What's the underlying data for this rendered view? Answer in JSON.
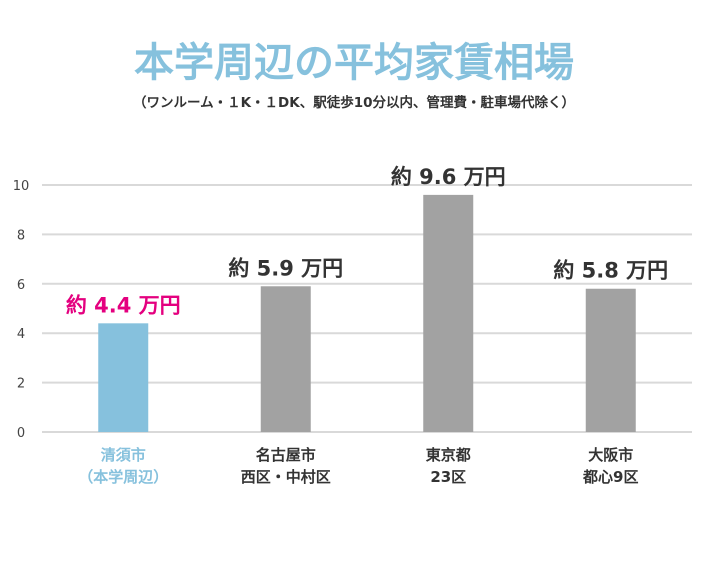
{
  "colors": {
    "title": "#86c1dd",
    "subtitle": "#333333",
    "highlight_bar": "#86c1dd",
    "default_bar": "#a2a2a2",
    "highlight_value_label": "#e4007f",
    "default_value_label": "#333333",
    "highlight_category": "#86c1dd",
    "default_category": "#333333",
    "gridline": "#d9d9d9",
    "axis_text": "#444444"
  },
  "chart_data": {
    "type": "bar",
    "title": "本学周辺の平均家賃相場",
    "subtitle": "（ワンルーム・１K・１DK、駅徒歩10分以内、管理費・駐車場代除く）",
    "xlabel": "",
    "ylabel": "",
    "ylim": [
      0,
      10
    ],
    "yticks": [
      0,
      2,
      4,
      6,
      8,
      10
    ],
    "grid": true,
    "legend": "none",
    "categories": [
      [
        "清須市",
        "（本学周辺）"
      ],
      [
        "名古屋市",
        "西区・中村区"
      ],
      [
        "東京都",
        "23区"
      ],
      [
        "大阪市",
        "都心9区"
      ]
    ],
    "values": [
      4.4,
      5.9,
      9.6,
      5.8
    ],
    "value_labels": [
      "約 4.4 万円",
      "約 5.9 万円",
      "約 9.6 万円",
      "約 5.8 万円"
    ],
    "highlight_index": 0
  }
}
